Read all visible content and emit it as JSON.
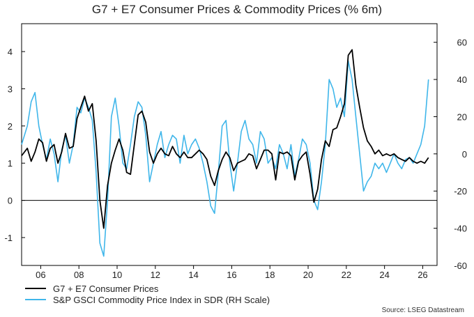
{
  "chart_data": {
    "type": "line",
    "title": "G7 + E7 Consumer Prices & Commodity Prices (% 6m)",
    "x_ticks": [
      "06",
      "08",
      "10",
      "12",
      "14",
      "16",
      "18",
      "20",
      "22",
      "24",
      "26"
    ],
    "x_tick_years": [
      2006,
      2008,
      2010,
      2012,
      2014,
      2016,
      2018,
      2020,
      2022,
      2024,
      2026
    ],
    "xlim": [
      2005.0,
      2026.75
    ],
    "y_left": {
      "ylim": [
        -1.75,
        4.75
      ],
      "ticks": [
        -1,
        0,
        1,
        2,
        3,
        4
      ]
    },
    "y_right": {
      "ylim": [
        -60,
        70
      ],
      "ticks": [
        -60,
        -40,
        -20,
        0,
        20,
        40,
        60
      ]
    },
    "zero_line": true,
    "series": [
      {
        "name": "G7 + E7 Consumer Prices",
        "color": "#000000",
        "axis": "left",
        "x": [
          2005.0,
          2005.3,
          2005.5,
          2005.7,
          2005.9,
          2006.1,
          2006.3,
          2006.5,
          2006.7,
          2006.9,
          2007.1,
          2007.3,
          2007.5,
          2007.7,
          2007.9,
          2008.1,
          2008.3,
          2008.5,
          2008.7,
          2008.9,
          2009.1,
          2009.3,
          2009.5,
          2009.7,
          2009.9,
          2010.1,
          2010.3,
          2010.5,
          2010.7,
          2010.9,
          2011.1,
          2011.3,
          2011.5,
          2011.7,
          2011.9,
          2012.1,
          2012.3,
          2012.5,
          2012.7,
          2012.9,
          2013.1,
          2013.3,
          2013.5,
          2013.7,
          2013.9,
          2014.1,
          2014.3,
          2014.5,
          2014.7,
          2014.9,
          2015.1,
          2015.3,
          2015.5,
          2015.7,
          2015.9,
          2016.1,
          2016.3,
          2016.5,
          2016.7,
          2016.9,
          2017.1,
          2017.3,
          2017.5,
          2017.7,
          2017.9,
          2018.1,
          2018.3,
          2018.5,
          2018.7,
          2018.9,
          2019.1,
          2019.3,
          2019.5,
          2019.7,
          2019.9,
          2020.1,
          2020.3,
          2020.5,
          2020.7,
          2020.9,
          2021.1,
          2021.3,
          2021.5,
          2021.7,
          2021.9,
          2022.1,
          2022.3,
          2022.5,
          2022.7,
          2022.9,
          2023.1,
          2023.3,
          2023.5,
          2023.7,
          2023.9,
          2024.1,
          2024.3,
          2024.5,
          2024.7,
          2024.9,
          2025.1,
          2025.3,
          2025.5,
          2025.7,
          2025.9,
          2026.1,
          2026.3
        ],
        "values": [
          1.2,
          1.4,
          1.05,
          1.3,
          1.65,
          1.55,
          1.05,
          1.4,
          1.5,
          1.0,
          1.3,
          1.8,
          1.4,
          1.45,
          2.2,
          2.5,
          2.8,
          2.4,
          2.6,
          1.6,
          0.0,
          -0.75,
          0.4,
          1.0,
          1.35,
          1.65,
          1.35,
          0.75,
          0.7,
          1.5,
          2.3,
          2.4,
          2.1,
          1.3,
          1.0,
          1.25,
          1.4,
          1.25,
          1.2,
          1.45,
          1.25,
          1.15,
          1.3,
          1.15,
          1.15,
          1.25,
          1.35,
          1.25,
          1.1,
          0.65,
          0.4,
          0.8,
          1.1,
          1.3,
          1.15,
          0.8,
          1.0,
          1.05,
          1.1,
          1.25,
          1.2,
          0.85,
          1.1,
          1.35,
          1.35,
          1.25,
          0.55,
          1.3,
          1.25,
          1.3,
          1.2,
          0.55,
          1.05,
          1.2,
          1.3,
          0.7,
          -0.05,
          0.3,
          1.1,
          1.6,
          1.45,
          1.9,
          1.95,
          2.25,
          2.6,
          3.9,
          4.05,
          3.1,
          2.5,
          1.95,
          1.6,
          1.45,
          1.25,
          1.35,
          1.2,
          1.25,
          1.2,
          1.25,
          1.15,
          1.1,
          1.05,
          1.15,
          1.05,
          1.0,
          1.05,
          1.0,
          1.15
        ]
      },
      {
        "name": "S&P GSCI Commodity Price Index in SDR (RH Scale)",
        "color": "#3fb6ea",
        "axis": "right",
        "x": [
          2005.0,
          2005.3,
          2005.5,
          2005.7,
          2005.9,
          2006.1,
          2006.3,
          2006.5,
          2006.7,
          2006.9,
          2007.1,
          2007.3,
          2007.5,
          2007.7,
          2007.9,
          2008.1,
          2008.3,
          2008.5,
          2008.7,
          2008.9,
          2009.1,
          2009.3,
          2009.5,
          2009.7,
          2009.9,
          2010.1,
          2010.3,
          2010.5,
          2010.7,
          2010.9,
          2011.1,
          2011.3,
          2011.5,
          2011.7,
          2011.9,
          2012.1,
          2012.3,
          2012.5,
          2012.7,
          2012.9,
          2013.1,
          2013.3,
          2013.5,
          2013.7,
          2013.9,
          2014.1,
          2014.3,
          2014.5,
          2014.7,
          2014.9,
          2015.1,
          2015.3,
          2015.5,
          2015.7,
          2015.9,
          2016.1,
          2016.3,
          2016.5,
          2016.7,
          2016.9,
          2017.1,
          2017.3,
          2017.5,
          2017.7,
          2017.9,
          2018.1,
          2018.3,
          2018.5,
          2018.7,
          2018.9,
          2019.1,
          2019.3,
          2019.5,
          2019.7,
          2019.9,
          2020.1,
          2020.3,
          2020.5,
          2020.7,
          2020.9,
          2021.1,
          2021.3,
          2021.5,
          2021.7,
          2021.9,
          2022.1,
          2022.3,
          2022.5,
          2022.7,
          2022.9,
          2023.1,
          2023.3,
          2023.5,
          2023.7,
          2023.9,
          2024.1,
          2024.3,
          2024.5,
          2024.7,
          2024.9,
          2025.1,
          2025.3,
          2025.5,
          2025.7,
          2025.9,
          2026.1,
          2026.3
        ],
        "values": [
          5,
          15,
          28,
          33,
          15,
          5,
          -3,
          8,
          0,
          -15,
          2,
          10,
          -5,
          5,
          25,
          22,
          30,
          25,
          18,
          -10,
          -48,
          -55,
          -25,
          20,
          30,
          15,
          -5,
          -8,
          5,
          20,
          28,
          25,
          10,
          -15,
          -5,
          5,
          12,
          -2,
          5,
          10,
          8,
          -5,
          10,
          0,
          5,
          8,
          3,
          -5,
          -15,
          -28,
          -32,
          -10,
          15,
          18,
          -5,
          -20,
          -5,
          12,
          18,
          8,
          5,
          -5,
          12,
          8,
          -5,
          -2,
          -8,
          5,
          0,
          -8,
          5,
          -12,
          -3,
          8,
          5,
          -5,
          -25,
          -30,
          -15,
          5,
          40,
          35,
          25,
          30,
          20,
          50,
          40,
          20,
          0,
          -20,
          -15,
          -12,
          -5,
          -8,
          -5,
          -10,
          -5,
          0,
          -5,
          -8,
          -3,
          -2,
          -5,
          0,
          5,
          15,
          40
        ]
      }
    ],
    "legend": [
      "G7 + E7 Consumer Prices",
      "S&P GSCI Commodity Price Index in SDR (RH Scale)"
    ],
    "legend_position": "bottom-left"
  },
  "source": "Source: LSEG Datastream"
}
